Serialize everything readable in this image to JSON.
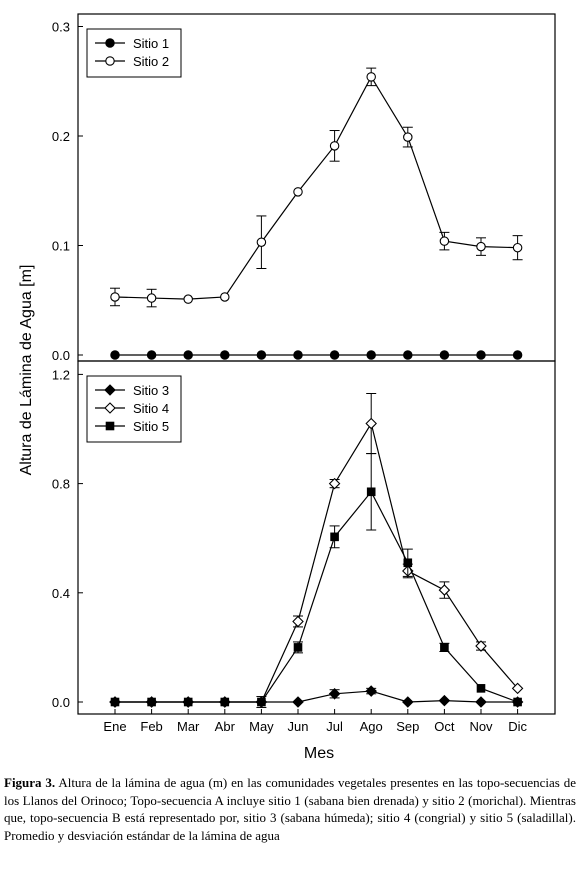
{
  "chart_data": [
    {
      "type": "line",
      "panel": "top",
      "categories": [
        "Ene",
        "Feb",
        "Mar",
        "Abr",
        "May",
        "Jun",
        "Jul",
        "Ago",
        "Sep",
        "Oct",
        "Nov",
        "Dic"
      ],
      "ylim": [
        0,
        0.3
      ],
      "yticks": [
        "0.0",
        "0.1",
        "0.2",
        "0.3"
      ],
      "ytick_values": [
        0,
        0.1,
        0.2,
        0.3
      ],
      "legend_position": "top-left",
      "series": [
        {
          "name": "Sitio 1",
          "marker": "circle-filled",
          "values": [
            0,
            0,
            0,
            0,
            0,
            0,
            0,
            0,
            0,
            0,
            0,
            0
          ],
          "errors": [
            0,
            0,
            0,
            0,
            0,
            0,
            0,
            0,
            0,
            0,
            0,
            0
          ]
        },
        {
          "name": "Sitio 2",
          "marker": "circle-open",
          "values": [
            0.053,
            0.052,
            0.051,
            0.053,
            0.103,
            0.149,
            0.191,
            0.254,
            0.199,
            0.104,
            0.099,
            0.098
          ],
          "errors": [
            0.008,
            0.008,
            0.005,
            0.004,
            0.024,
            0.004,
            0.014,
            0.008,
            0.009,
            0.008,
            0.008,
            0.011
          ]
        }
      ]
    },
    {
      "type": "line",
      "panel": "bottom",
      "categories": [
        "Ene",
        "Feb",
        "Mar",
        "Abr",
        "May",
        "Jun",
        "Jul",
        "Ago",
        "Sep",
        "Oct",
        "Nov",
        "Dic"
      ],
      "ylim": [
        -0.03,
        1.2
      ],
      "yticks": [
        "0.0",
        "0.4",
        "0.8",
        "1.2"
      ],
      "ytick_values": [
        0,
        0.4,
        0.8,
        1.2
      ],
      "legend_position": "top-left",
      "series": [
        {
          "name": "Sitio 3",
          "marker": "diamond-filled",
          "values": [
            0,
            0,
            0,
            0,
            0,
            0,
            0.03,
            0.04,
            0,
            0.005,
            0,
            0
          ],
          "errors": [
            0,
            0,
            0,
            0,
            0,
            0,
            0.015,
            0.01,
            0,
            0.005,
            0,
            0
          ]
        },
        {
          "name": "Sitio 4",
          "marker": "diamond-open",
          "values": [
            0,
            0,
            0,
            0,
            0,
            0.295,
            0.8,
            1.02,
            0.48,
            0.41,
            0.205,
            0.05
          ],
          "errors": [
            0.005,
            0.005,
            0.005,
            0.005,
            0.02,
            0.02,
            0.015,
            0.11,
            0.025,
            0.03,
            0.015,
            0.005
          ]
        },
        {
          "name": "Sitio 5",
          "marker": "square-filled",
          "values": [
            0,
            0,
            0,
            0,
            0,
            0.2,
            0.605,
            0.77,
            0.51,
            0.2,
            0.05,
            0
          ],
          "errors": [
            0.005,
            0.005,
            0.005,
            0.005,
            0.005,
            0.02,
            0.04,
            0.14,
            0.05,
            0.015,
            0.005,
            0.005
          ]
        }
      ]
    }
  ],
  "axes": {
    "xlabel": "Mes",
    "ylabel": "Altura de Lámina de Agua [m]"
  },
  "caption": {
    "label": "Figura 3.",
    "text": "Altura de la lámina de agua (m) en las comunidades vegetales presentes en las topo-secuencias de los Llanos del Orinoco; Topo-secuencia A incluye sitio 1 (sabana bien drenada) y sitio 2 (morichal). Mientras que, topo-secuencia B está representado por, sitio 3 (sabana húmeda); sitio 4 (congrial) y sitio 5 (saladillal). Promedio y desviación estándar de la lámina de agua"
  }
}
